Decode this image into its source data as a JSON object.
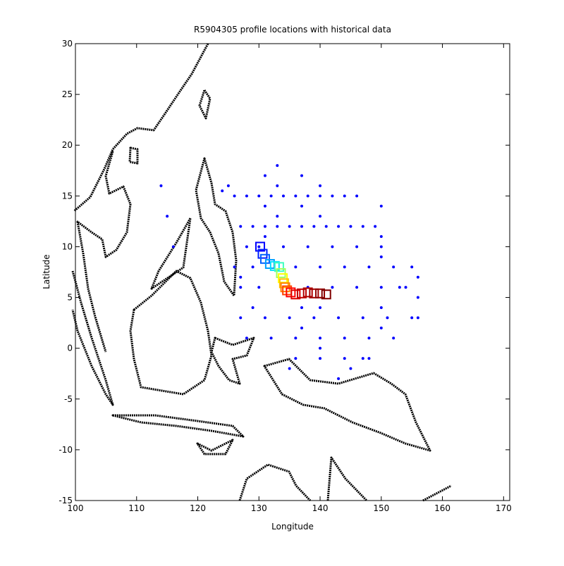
{
  "chart_data": {
    "type": "scatter",
    "title": "R5904305 profile locations with historical data",
    "x_label": "Longitude",
    "y_label": "Latitude",
    "xlim": [
      100,
      171
    ],
    "ylim": [
      -15,
      30
    ],
    "xticks": [
      100,
      110,
      120,
      130,
      140,
      150,
      160,
      170
    ],
    "yticks": [
      -15,
      -10,
      -5,
      0,
      5,
      10,
      15,
      20,
      25,
      30
    ],
    "series": [
      {
        "color": "#0000ff",
        "marker": "dot",
        "x": [
          126,
          128,
          130,
          132,
          134,
          136,
          138,
          140,
          142,
          144,
          146,
          127,
          129,
          131,
          133,
          135,
          137,
          139,
          141,
          143,
          145,
          147,
          149,
          128,
          130,
          134,
          138,
          142,
          146,
          150,
          126,
          129,
          136,
          140,
          144,
          148,
          152,
          155,
          127,
          130,
          138,
          142,
          146,
          150,
          154,
          127,
          131,
          135,
          139,
          143,
          147,
          151,
          155,
          128,
          132,
          136,
          140,
          144,
          148,
          152,
          136,
          140,
          144,
          148,
          131,
          131,
          131,
          133,
          133,
          133,
          137,
          137,
          137,
          137,
          140,
          140,
          140,
          140,
          150,
          150,
          150,
          150,
          150,
          156,
          156,
          156,
          114,
          115,
          124,
          116,
          125,
          127,
          129,
          145,
          147,
          153,
          135,
          143
        ],
        "y": [
          15,
          15,
          15,
          15,
          15,
          15,
          15,
          15,
          15,
          15,
          15,
          12,
          12,
          12,
          12,
          12,
          12,
          12,
          12,
          12,
          12,
          12,
          12,
          10,
          10,
          10,
          10,
          10,
          10,
          10,
          8,
          8,
          8,
          8,
          8,
          8,
          8,
          8,
          6,
          6,
          6,
          6,
          6,
          6,
          6,
          3,
          3,
          3,
          3,
          3,
          3,
          3,
          3,
          1,
          1,
          1,
          1,
          1,
          1,
          1,
          -1,
          -1,
          -1,
          -1,
          17,
          14,
          11,
          18,
          16,
          13,
          17,
          14,
          4,
          2,
          16,
          13,
          4,
          0,
          14,
          11,
          9,
          4,
          2,
          7,
          5,
          3,
          16,
          13,
          15.5,
          10,
          16,
          7,
          4,
          -2,
          -1,
          6,
          -2,
          -3
        ]
      },
      {
        "marker": "square",
        "x": [
          130.2,
          130.6,
          131.0,
          131.8,
          132.6,
          133.3,
          133.6,
          133.9,
          134.1,
          134.3,
          134.6,
          135.2,
          136,
          137,
          138,
          139,
          140,
          141
        ],
        "y": [
          10,
          9.3,
          8.8,
          8.3,
          8.1,
          8.0,
          7.4,
          6.9,
          6.4,
          6.0,
          5.7,
          5.5,
          5.3,
          5.4,
          5.5,
          5.4,
          5.4,
          5.3
        ],
        "colors": [
          "#0000ff",
          "#0020ff",
          "#0060ff",
          "#00a0ff",
          "#00e0ff",
          "#40ffc0",
          "#a0ff60",
          "#ffff00",
          "#ffc000",
          "#ff8000",
          "#ff4000",
          "#ff0000",
          "#e00000",
          "#c00000",
          "#b00000",
          "#a00000",
          "#900000",
          "#800000"
        ]
      }
    ]
  }
}
